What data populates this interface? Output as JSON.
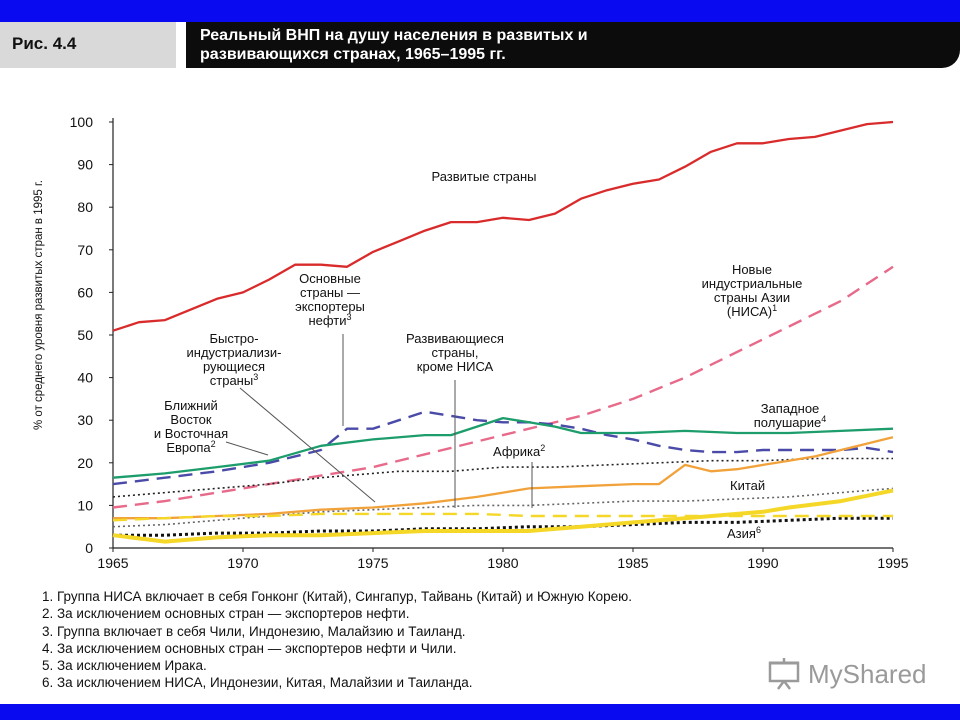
{
  "header": {
    "figure_label": "Рис. 4.4",
    "title_line1": "Реальный ВНП на душу населения в развитых и",
    "title_line2": "развивающихся странах, 1965–1995 гг."
  },
  "chart_data": {
    "type": "line",
    "title": "Реальный ВНП на душу населения в развитых и развивающихся странах, 1965–1995 гг.",
    "xlabel": "",
    "ylabel": "% от среднего уровня развитых стран в 1995 г.",
    "xlim": [
      1965,
      1995
    ],
    "ylim": [
      0,
      100
    ],
    "x_ticks": [
      1965,
      1970,
      1975,
      1980,
      1985,
      1990,
      1995
    ],
    "y_ticks": [
      0,
      10,
      20,
      30,
      40,
      50,
      60,
      70,
      80,
      90,
      100
    ],
    "grid": false,
    "series": [
      {
        "id": "developed",
        "style": "solid",
        "color": "#d92b2b",
        "points": [
          [
            1965,
            51
          ],
          [
            1966,
            53
          ],
          [
            1967,
            53.5
          ],
          [
            1968,
            56
          ],
          [
            1969,
            58.5
          ],
          [
            1970,
            60
          ],
          [
            1971,
            63
          ],
          [
            1972,
            66.5
          ],
          [
            1973,
            66.5
          ],
          [
            1974,
            66
          ],
          [
            1975,
            69.5
          ],
          [
            1976,
            72
          ],
          [
            1977,
            74.5
          ],
          [
            1978,
            76.5
          ],
          [
            1979,
            76.5
          ],
          [
            1980,
            77.5
          ],
          [
            1981,
            77
          ],
          [
            1982,
            78.5
          ],
          [
            1983,
            82
          ],
          [
            1984,
            84
          ],
          [
            1985,
            85.5
          ],
          [
            1986,
            86.5
          ],
          [
            1987,
            89.5
          ],
          [
            1988,
            93
          ],
          [
            1989,
            95
          ],
          [
            1990,
            95
          ],
          [
            1991,
            96
          ],
          [
            1992,
            96.5
          ],
          [
            1993,
            98
          ],
          [
            1994,
            99.5
          ],
          [
            1995,
            100
          ]
        ]
      },
      {
        "id": "nics",
        "style": "dash",
        "color": "#e86a8a",
        "points": [
          [
            1965,
            9.5
          ],
          [
            1967,
            11
          ],
          [
            1969,
            13
          ],
          [
            1971,
            15
          ],
          [
            1973,
            17
          ],
          [
            1975,
            19
          ],
          [
            1977,
            22
          ],
          [
            1979,
            25
          ],
          [
            1981,
            28
          ],
          [
            1983,
            31
          ],
          [
            1985,
            35
          ],
          [
            1987,
            40
          ],
          [
            1989,
            46
          ],
          [
            1991,
            52
          ],
          [
            1993,
            58
          ],
          [
            1995,
            66
          ]
        ]
      },
      {
        "id": "oil_exporters",
        "style": "dash",
        "color": "#4a4aa8",
        "points": [
          [
            1965,
            15
          ],
          [
            1967,
            16.5
          ],
          [
            1969,
            18
          ],
          [
            1971,
            20
          ],
          [
            1973,
            23
          ],
          [
            1974,
            28
          ],
          [
            1975,
            28
          ],
          [
            1976,
            30
          ],
          [
            1977,
            32
          ],
          [
            1978,
            31
          ],
          [
            1979,
            30
          ],
          [
            1980,
            29.5
          ],
          [
            1981,
            29.5
          ],
          [
            1982,
            29
          ],
          [
            1983,
            28
          ],
          [
            1984,
            26.5
          ],
          [
            1985,
            25.5
          ],
          [
            1986,
            24
          ],
          [
            1987,
            23
          ],
          [
            1988,
            22.5
          ],
          [
            1989,
            22.5
          ],
          [
            1990,
            23
          ],
          [
            1991,
            23
          ],
          [
            1992,
            23
          ],
          [
            1993,
            23
          ],
          [
            1994,
            23.5
          ],
          [
            1995,
            22.5
          ]
        ]
      },
      {
        "id": "western_hemisphere",
        "style": "solid",
        "color": "#1c9d6b",
        "points": [
          [
            1965,
            16.5
          ],
          [
            1967,
            17.5
          ],
          [
            1969,
            19
          ],
          [
            1971,
            20.5
          ],
          [
            1973,
            24
          ],
          [
            1975,
            25.5
          ],
          [
            1977,
            26.5
          ],
          [
            1978,
            26.5
          ],
          [
            1979,
            28.5
          ],
          [
            1980,
            30.5
          ],
          [
            1981,
            29.5
          ],
          [
            1982,
            28.5
          ],
          [
            1983,
            27
          ],
          [
            1985,
            27
          ],
          [
            1987,
            27.5
          ],
          [
            1989,
            27
          ],
          [
            1991,
            27
          ],
          [
            1993,
            27.5
          ],
          [
            1995,
            28
          ]
        ]
      },
      {
        "id": "middle_east_europe",
        "style": "dot",
        "color": "#222222",
        "points": [
          [
            1965,
            12
          ],
          [
            1967,
            13
          ],
          [
            1969,
            14
          ],
          [
            1971,
            15
          ],
          [
            1973,
            16.5
          ],
          [
            1975,
            17.5
          ],
          [
            1976,
            18
          ],
          [
            1978,
            18
          ],
          [
            1980,
            19
          ],
          [
            1982,
            19
          ],
          [
            1984,
            19.5
          ],
          [
            1986,
            20
          ],
          [
            1988,
            20.5
          ],
          [
            1990,
            20.5
          ],
          [
            1992,
            21
          ],
          [
            1994,
            21
          ],
          [
            1995,
            21
          ]
        ]
      },
      {
        "id": "africa",
        "style": "solid",
        "color": "#f2a23a",
        "points": [
          [
            1965,
            7
          ],
          [
            1967,
            7
          ],
          [
            1969,
            7.5
          ],
          [
            1971,
            8
          ],
          [
            1973,
            9
          ],
          [
            1975,
            9.5
          ],
          [
            1977,
            10.5
          ],
          [
            1979,
            12
          ],
          [
            1981,
            14
          ],
          [
            1983,
            14.5
          ],
          [
            1985,
            15
          ],
          [
            1986,
            15
          ],
          [
            1987,
            19.5
          ],
          [
            1988,
            18
          ],
          [
            1989,
            18.5
          ],
          [
            1990,
            19.5
          ],
          [
            1991,
            20.5
          ],
          [
            1992,
            21.5
          ],
          [
            1993,
            23
          ],
          [
            1994,
            24.5
          ],
          [
            1995,
            26
          ]
        ]
      },
      {
        "id": "developing_excl_nics",
        "style": "dot",
        "color": "#666666",
        "points": [
          [
            1965,
            5
          ],
          [
            1967,
            5.5
          ],
          [
            1969,
            6.5
          ],
          [
            1971,
            7.5
          ],
          [
            1973,
            8.5
          ],
          [
            1975,
            9
          ],
          [
            1977,
            9.5
          ],
          [
            1979,
            10
          ],
          [
            1981,
            10
          ],
          [
            1983,
            10.5
          ],
          [
            1985,
            11
          ],
          [
            1987,
            11
          ],
          [
            1989,
            11.5
          ],
          [
            1991,
            12
          ],
          [
            1993,
            13
          ],
          [
            1995,
            14
          ]
        ]
      },
      {
        "id": "asia",
        "style": "dot-heavy",
        "color": "#111111",
        "points": [
          [
            1965,
            3
          ],
          [
            1967,
            3
          ],
          [
            1969,
            3.5
          ],
          [
            1971,
            3.5
          ],
          [
            1973,
            4
          ],
          [
            1975,
            4
          ],
          [
            1977,
            4.5
          ],
          [
            1979,
            4.5
          ],
          [
            1981,
            5
          ],
          [
            1983,
            5
          ],
          [
            1985,
            5.5
          ],
          [
            1987,
            6
          ],
          [
            1989,
            6
          ],
          [
            1991,
            6.5
          ],
          [
            1993,
            7
          ],
          [
            1995,
            7
          ]
        ]
      },
      {
        "id": "china",
        "style": "solid-thick",
        "color": "#f5d728",
        "points": [
          [
            1965,
            3
          ],
          [
            1967,
            1.5
          ],
          [
            1969,
            2.5
          ],
          [
            1971,
            3
          ],
          [
            1973,
            3
          ],
          [
            1975,
            3.5
          ],
          [
            1977,
            4
          ],
          [
            1979,
            4
          ],
          [
            1981,
            4
          ],
          [
            1983,
            5
          ],
          [
            1985,
            6
          ],
          [
            1987,
            7
          ],
          [
            1989,
            8
          ],
          [
            1990,
            8.5
          ],
          [
            1991,
            9.5
          ],
          [
            1993,
            11
          ],
          [
            1995,
            13.5
          ]
        ]
      },
      {
        "id": "dashed_yellow",
        "style": "dash",
        "color": "#f5d728",
        "points": [
          [
            1965,
            6.5
          ],
          [
            1967,
            7
          ],
          [
            1969,
            7.5
          ],
          [
            1971,
            7.5
          ],
          [
            1973,
            8
          ],
          [
            1975,
            8
          ],
          [
            1977,
            8
          ],
          [
            1979,
            8
          ],
          [
            1981,
            7.5
          ],
          [
            1983,
            7.5
          ],
          [
            1985,
            7.5
          ],
          [
            1987,
            7.5
          ],
          [
            1989,
            7.5
          ],
          [
            1991,
            7.5
          ],
          [
            1993,
            7.5
          ],
          [
            1995,
            7.5
          ]
        ]
      }
    ],
    "annotations": {
      "developed": [
        "Развитые страны"
      ],
      "oil": [
        "Основные",
        "страны —",
        "экспортеры",
        "нефти"
      ],
      "oil_sup": "3",
      "nics": [
        "Новые",
        "индустриальные",
        "страны Азии",
        "(НИСА)"
      ],
      "nics_sup": "1",
      "fast": [
        "Быстро-",
        "индустриализи-",
        "рующиеся",
        "страны"
      ],
      "fast_sup": "3",
      "developing": [
        "Развивающиеся",
        "страны,",
        "кроме НИСА"
      ],
      "me": [
        "Ближний",
        "Восток",
        "и Восточная",
        "Европа"
      ],
      "me_sup": "2",
      "west": [
        "Западное",
        "полушарие"
      ],
      "west_sup": "4",
      "africa": "Африка",
      "africa_sup": "2",
      "china": "Китай",
      "asia": "Азия",
      "asia_sup": "6"
    }
  },
  "notes": [
    "1. Группа НИСА включает в себя Гонконг (Китай), Сингапур, Тайвань (Китай) и Южную Корею.",
    "2. За исключением основных стран — экспортеров нефти.",
    "3. Группа включает в себя Чили, Индонезию, Малайзию и Таиланд.",
    "4. За исключением основных стран — экспортеров нефти и Чили.",
    "5. За исключением Ирака.",
    "6. За исключением НИСА, Индонезии, Китая, Малайзии и Таиланда."
  ],
  "watermark": {
    "text": "MyShared",
    "icon": "presentation-board-icon"
  },
  "colors": {
    "frame_blue": "#0a0af0",
    "title_bg": "#0c0c0c",
    "figure_box": "#d9d9d9"
  }
}
